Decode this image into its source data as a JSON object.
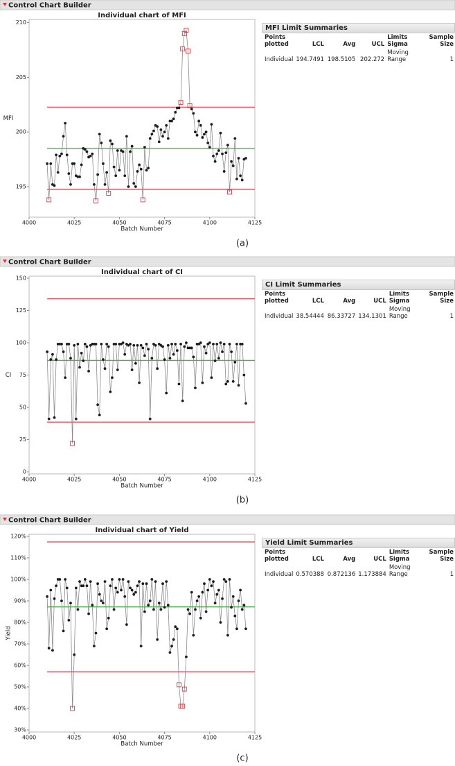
{
  "chart_data": [
    {
      "type": "line",
      "panel_title": "Control Chart Builder",
      "title": "Individual chart of MFI",
      "x_label": "Batch Number",
      "y_label": "MFI",
      "caption": "(a)",
      "xlim": [
        4000,
        4125
      ],
      "xticks": [
        4000,
        4025,
        4050,
        4075,
        4100,
        4125
      ],
      "ylim": [
        192.4,
        210.1
      ],
      "yticks": [
        195,
        200,
        205,
        210
      ],
      "x": [
        4010,
        4011,
        4012,
        4013,
        4014,
        4015,
        4016,
        4017,
        4018,
        4019,
        4020,
        4021,
        4022,
        4023,
        4024,
        4025,
        4026,
        4027,
        4028,
        4029,
        4030,
        4031,
        4032,
        4033,
        4034,
        4035,
        4036,
        4037,
        4038,
        4039,
        4040,
        4041,
        4042,
        4043,
        4044,
        4045,
        4046,
        4047,
        4048,
        4049,
        4050,
        4051,
        4052,
        4053,
        4054,
        4055,
        4056,
        4057,
        4058,
        4059,
        4060,
        4061,
        4062,
        4063,
        4064,
        4065,
        4066,
        4067,
        4068,
        4069,
        4070,
        4071,
        4072,
        4073,
        4074,
        4075,
        4076,
        4077,
        4078,
        4079,
        4080,
        4081,
        4082,
        4083,
        4084,
        4085,
        4086,
        4087,
        4088,
        4089,
        4090,
        4091,
        4092,
        4093,
        4094,
        4095,
        4096,
        4097,
        4098,
        4099,
        4100,
        4101,
        4102,
        4103,
        4104,
        4105,
        4106,
        4107,
        4108,
        4109,
        4110,
        4111,
        4112,
        4113,
        4114,
        4115,
        4116,
        4117,
        4118,
        4119,
        4120
      ],
      "values": [
        197.1,
        193.8,
        197.1,
        195.2,
        195.1,
        197.9,
        196.3,
        197.8,
        198.0,
        199.6,
        200.8,
        197.9,
        196.2,
        195.2,
        197.1,
        197.1,
        196.0,
        195.9,
        195.9,
        197.0,
        198.5,
        198.4,
        198.2,
        197.7,
        197.8,
        198.0,
        195.2,
        193.7,
        196.1,
        199.8,
        199.0,
        197.1,
        195.2,
        196.3,
        194.4,
        199.2,
        198.9,
        196.8,
        196.0,
        198.3,
        196.5,
        198.3,
        198.2,
        196.0,
        199.6,
        195.0,
        198.2,
        198.7,
        195.3,
        195.0,
        196.4,
        197.0,
        196.6,
        193.8,
        198.6,
        196.5,
        196.7,
        199.4,
        199.8,
        200.1,
        200.6,
        200.5,
        199.1,
        200.2,
        199.6,
        200.0,
        200.6,
        199.4,
        201.0,
        201.0,
        201.2,
        201.8,
        202.2,
        202.2,
        202.7,
        207.6,
        209.0,
        209.3,
        207.4,
        202.4,
        202.1,
        201.7,
        200.0,
        199.7,
        201.0,
        200.6,
        199.5,
        199.8,
        200.0,
        199.0,
        198.6,
        200.7,
        197.8,
        197.3,
        198.0,
        198.3,
        199.9,
        198.0,
        196.4,
        198.1,
        198.8,
        194.5,
        197.3,
        196.9,
        199.4,
        195.7,
        197.6,
        196.0,
        195.6,
        197.5,
        197.6
      ],
      "line_color": "#8a8a8a",
      "marker_color": "#1e1e1e",
      "flag_color": "#d9363e",
      "limit_color": "#e8485a",
      "center_color": "#47b047",
      "summary": {
        "title": "MFI Limit Summaries",
        "headers": [
          "Points plotted",
          "LCL",
          "Avg",
          "UCL",
          "Limits Sigma",
          "Sample Size"
        ],
        "rows": [
          [
            "Individual",
            194.7491,
            198.5105,
            202.272,
            "Moving Range",
            1
          ]
        ]
      }
    },
    {
      "type": "line",
      "panel_title": "Control Chart Builder",
      "title": "Individual chart of CI",
      "x_label": "Batch Number",
      "y_label": "CI",
      "caption": "(b)",
      "xlim": [
        4000,
        4125
      ],
      "xticks": [
        4000,
        4025,
        4050,
        4075,
        4100,
        4125
      ],
      "ylim": [
        0,
        150
      ],
      "yticks": [
        0,
        25,
        50,
        75,
        100,
        125,
        150
      ],
      "x": [
        4010,
        4011,
        4012,
        4013,
        4014,
        4015,
        4016,
        4017,
        4018,
        4019,
        4020,
        4021,
        4022,
        4023,
        4024,
        4025,
        4026,
        4027,
        4028,
        4029,
        4030,
        4031,
        4032,
        4033,
        4034,
        4035,
        4036,
        4037,
        4038,
        4039,
        4040,
        4041,
        4042,
        4043,
        4044,
        4045,
        4046,
        4047,
        4048,
        4049,
        4050,
        4051,
        4052,
        4053,
        4054,
        4055,
        4056,
        4057,
        4058,
        4059,
        4060,
        4061,
        4062,
        4063,
        4064,
        4065,
        4066,
        4067,
        4068,
        4069,
        4070,
        4071,
        4072,
        4073,
        4074,
        4075,
        4076,
        4077,
        4078,
        4079,
        4080,
        4081,
        4082,
        4083,
        4084,
        4085,
        4086,
        4087,
        4088,
        4089,
        4090,
        4091,
        4092,
        4093,
        4094,
        4095,
        4096,
        4097,
        4098,
        4099,
        4100,
        4101,
        4102,
        4103,
        4104,
        4105,
        4106,
        4107,
        4108,
        4109,
        4110,
        4111,
        4112,
        4113,
        4114,
        4115,
        4116,
        4117,
        4118,
        4119,
        4120
      ],
      "values": [
        93,
        41,
        87,
        91,
        42,
        87,
        99,
        99,
        99,
        93,
        73,
        99,
        99,
        88,
        22,
        98,
        41,
        99,
        81,
        92,
        86,
        99,
        97,
        78,
        98,
        99,
        99,
        99,
        52,
        44,
        99,
        87,
        80,
        99,
        97,
        62,
        73,
        99,
        99,
        79,
        99,
        99,
        100,
        91,
        99,
        98,
        99,
        79,
        98,
        84,
        98,
        69,
        98,
        96,
        90,
        99,
        95,
        41,
        88,
        99,
        98,
        80,
        99,
        98,
        97,
        87,
        61,
        98,
        88,
        99,
        91,
        99,
        94,
        68,
        99,
        55,
        97,
        100,
        96,
        96,
        96,
        89,
        65,
        99,
        99,
        100,
        69,
        97,
        92,
        99,
        100,
        73,
        99,
        86,
        99,
        88,
        100,
        93,
        99,
        68,
        70,
        99,
        93,
        70,
        85,
        99,
        67,
        99,
        99,
        75,
        53
      ],
      "line_color": "#8a8a8a",
      "marker_color": "#1e1e1e",
      "flag_color": "#d9363e",
      "limit_color": "#e8485a",
      "center_color": "#47b047",
      "summary": {
        "title": "CI Limit Summaries",
        "headers": [
          "Points plotted",
          "LCL",
          "Avg",
          "UCL",
          "Limits Sigma",
          "Sample Size"
        ],
        "rows": [
          [
            "Individual",
            38.54444,
            86.33727,
            134.1301,
            "Moving Range",
            1
          ]
        ]
      }
    },
    {
      "type": "line",
      "panel_title": "Control Chart Builder",
      "title": "Individual chart of Yield",
      "x_label": "Batch Number",
      "y_label": "Yield",
      "caption": "(c)",
      "xlim": [
        4000,
        4125
      ],
      "xticks": [
        4000,
        4025,
        4050,
        4075,
        4100,
        4125
      ],
      "ylim": [
        0.3,
        1.2
      ],
      "yticks": [
        {
          "value": 0.3,
          "label": "30%"
        },
        {
          "value": 0.4,
          "label": "40%"
        },
        {
          "value": 0.5,
          "label": "50%"
        },
        {
          "value": 0.6,
          "label": "60%"
        },
        {
          "value": 0.7,
          "label": "70%"
        },
        {
          "value": 0.8,
          "label": "80%"
        },
        {
          "value": 0.9,
          "label": "90%"
        },
        {
          "value": 1.0,
          "label": "100%"
        },
        {
          "value": 1.1,
          "label": "110%"
        },
        {
          "value": 1.2,
          "label": "120%"
        }
      ],
      "x": [
        4010,
        4011,
        4012,
        4013,
        4014,
        4015,
        4016,
        4017,
        4018,
        4019,
        4020,
        4021,
        4022,
        4023,
        4024,
        4025,
        4026,
        4027,
        4028,
        4029,
        4030,
        4031,
        4032,
        4033,
        4034,
        4035,
        4036,
        4037,
        4038,
        4039,
        4040,
        4041,
        4042,
        4043,
        4044,
        4045,
        4046,
        4047,
        4048,
        4049,
        4050,
        4051,
        4052,
        4053,
        4054,
        4055,
        4056,
        4057,
        4058,
        4059,
        4060,
        4061,
        4062,
        4063,
        4064,
        4065,
        4066,
        4067,
        4068,
        4069,
        4070,
        4071,
        4072,
        4073,
        4074,
        4075,
        4076,
        4077,
        4078,
        4079,
        4080,
        4081,
        4082,
        4083,
        4084,
        4085,
        4086,
        4087,
        4088,
        4089,
        4090,
        4091,
        4092,
        4093,
        4094,
        4095,
        4096,
        4097,
        4098,
        4099,
        4100,
        4101,
        4102,
        4103,
        4104,
        4105,
        4106,
        4107,
        4108,
        4109,
        4110,
        4111,
        4112,
        4113,
        4114,
        4115,
        4116,
        4117,
        4118,
        4119,
        4120
      ],
      "values": [
        0.92,
        0.68,
        0.95,
        0.67,
        0.91,
        0.97,
        1.0,
        1.0,
        0.9,
        0.76,
        1.0,
        0.96,
        0.81,
        0.89,
        0.4,
        0.65,
        0.96,
        0.86,
        0.99,
        0.97,
        0.97,
        1.0,
        0.97,
        0.84,
        0.99,
        0.88,
        0.69,
        0.75,
        0.98,
        0.93,
        0.9,
        0.89,
        0.99,
        0.77,
        0.82,
        0.97,
        1.0,
        0.86,
        0.96,
        0.94,
        1.0,
        0.95,
        1.0,
        0.92,
        0.79,
        0.99,
        0.96,
        0.95,
        0.93,
        0.94,
        0.97,
        0.99,
        0.69,
        0.98,
        0.85,
        0.98,
        0.88,
        0.9,
        1.0,
        0.86,
        0.99,
        0.72,
        0.89,
        0.86,
        0.98,
        0.87,
        0.99,
        0.88,
        0.66,
        0.69,
        0.72,
        0.78,
        0.77,
        0.51,
        0.41,
        0.41,
        0.49,
        0.64,
        0.86,
        0.84,
        0.94,
        0.74,
        0.86,
        0.9,
        0.92,
        0.82,
        0.94,
        0.98,
        0.85,
        0.95,
        1.0,
        0.97,
        0.99,
        0.89,
        0.93,
        0.95,
        0.8,
        0.91,
        1.0,
        0.99,
        0.74,
        1.0,
        0.87,
        0.92,
        0.83,
        0.77,
        0.9,
        0.95,
        0.86,
        0.88,
        0.77
      ],
      "line_color": "#8a8a8a",
      "marker_color": "#1e1e1e",
      "flag_color": "#d9363e",
      "limit_color": "#e8485a",
      "center_color": "#47b047",
      "summary": {
        "title": "Yield Limit Summaries",
        "headers": [
          "Points plotted",
          "LCL",
          "Avg",
          "UCL",
          "Limits Sigma",
          "Sample Size"
        ],
        "rows": [
          [
            "Individual",
            0.570388,
            0.872136,
            1.173884,
            "Moving Range",
            1
          ]
        ]
      }
    }
  ]
}
